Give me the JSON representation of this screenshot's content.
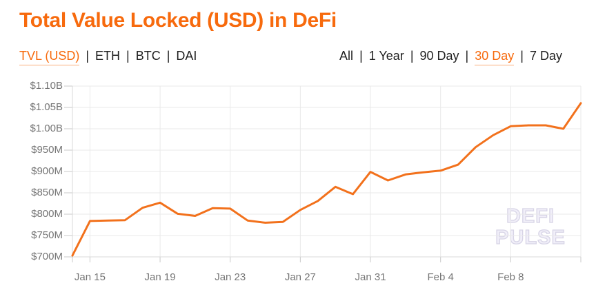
{
  "page": {
    "title": "Total Value Locked (USD) in DeFi"
  },
  "series_tabs": {
    "separator": "|",
    "items": [
      {
        "label": "TVL (USD)",
        "active": true
      },
      {
        "label": "ETH",
        "active": false
      },
      {
        "label": "BTC",
        "active": false
      },
      {
        "label": "DAI",
        "active": false
      }
    ]
  },
  "range_tabs": {
    "separator": "|",
    "items": [
      {
        "label": "All",
        "active": false
      },
      {
        "label": "1 Year",
        "active": false
      },
      {
        "label": "90 Day",
        "active": false
      },
      {
        "label": "30 Day",
        "active": true
      },
      {
        "label": "7 Day",
        "active": false
      }
    ]
  },
  "watermark": {
    "line1": "DEFI",
    "line2": "PULSE"
  },
  "colors": {
    "accent_orange": "#f76a0d",
    "line_orange": "#f2711c",
    "axis_text": "#757575",
    "tab_text": "#212121",
    "gridline": "#e9e9e9",
    "axis_edge": "#d8d8d8",
    "tick": "#c9c9c9",
    "watermark": "#d7d4e6"
  },
  "chart_data": {
    "type": "line",
    "title": "Total Value Locked (USD) in DeFi",
    "series_name": "TVL (USD)",
    "unit": "USD millions",
    "legend": "none",
    "grid": true,
    "line_color": "#f2711c",
    "ylim": [
      700,
      1100
    ],
    "x_range": [
      "Jan 14",
      "Feb 12"
    ],
    "categories": [
      "Jan 14",
      "Jan 15",
      "Jan 16",
      "Jan 17",
      "Jan 18",
      "Jan 19",
      "Jan 20",
      "Jan 21",
      "Jan 22",
      "Jan 23",
      "Jan 24",
      "Jan 25",
      "Jan 26",
      "Jan 27",
      "Jan 28",
      "Jan 29",
      "Jan 30",
      "Jan 31",
      "Feb 1",
      "Feb 2",
      "Feb 3",
      "Feb 4",
      "Feb 5",
      "Feb 6",
      "Feb 7",
      "Feb 8",
      "Feb 9",
      "Feb 10",
      "Feb 11",
      "Feb 12"
    ],
    "values": [
      703,
      784,
      785,
      786,
      815,
      827,
      801,
      796,
      814,
      813,
      785,
      780,
      782,
      810,
      831,
      864,
      847,
      899,
      879,
      893,
      898,
      902,
      916,
      957,
      985,
      1006,
      1008,
      1008,
      1000,
      1060
    ],
    "y_ticks": [
      {
        "label": "$1.10B",
        "value": 1100
      },
      {
        "label": "$1.05B",
        "value": 1050
      },
      {
        "label": "$1.00B",
        "value": 1000
      },
      {
        "label": "$950M",
        "value": 950
      },
      {
        "label": "$900M",
        "value": 900
      },
      {
        "label": "$850M",
        "value": 850
      },
      {
        "label": "$800M",
        "value": 800
      },
      {
        "label": "$750M",
        "value": 750
      },
      {
        "label": "$700M",
        "value": 700
      }
    ],
    "x_tick_labels": [
      {
        "label": "Jan 15",
        "index": 1
      },
      {
        "label": "Jan 19",
        "index": 5
      },
      {
        "label": "Jan 23",
        "index": 9
      },
      {
        "label": "Jan 27",
        "index": 13
      },
      {
        "label": "Jan 31",
        "index": 17
      },
      {
        "label": "Feb 4",
        "index": 21
      },
      {
        "label": "Feb 8",
        "index": 25
      }
    ]
  }
}
